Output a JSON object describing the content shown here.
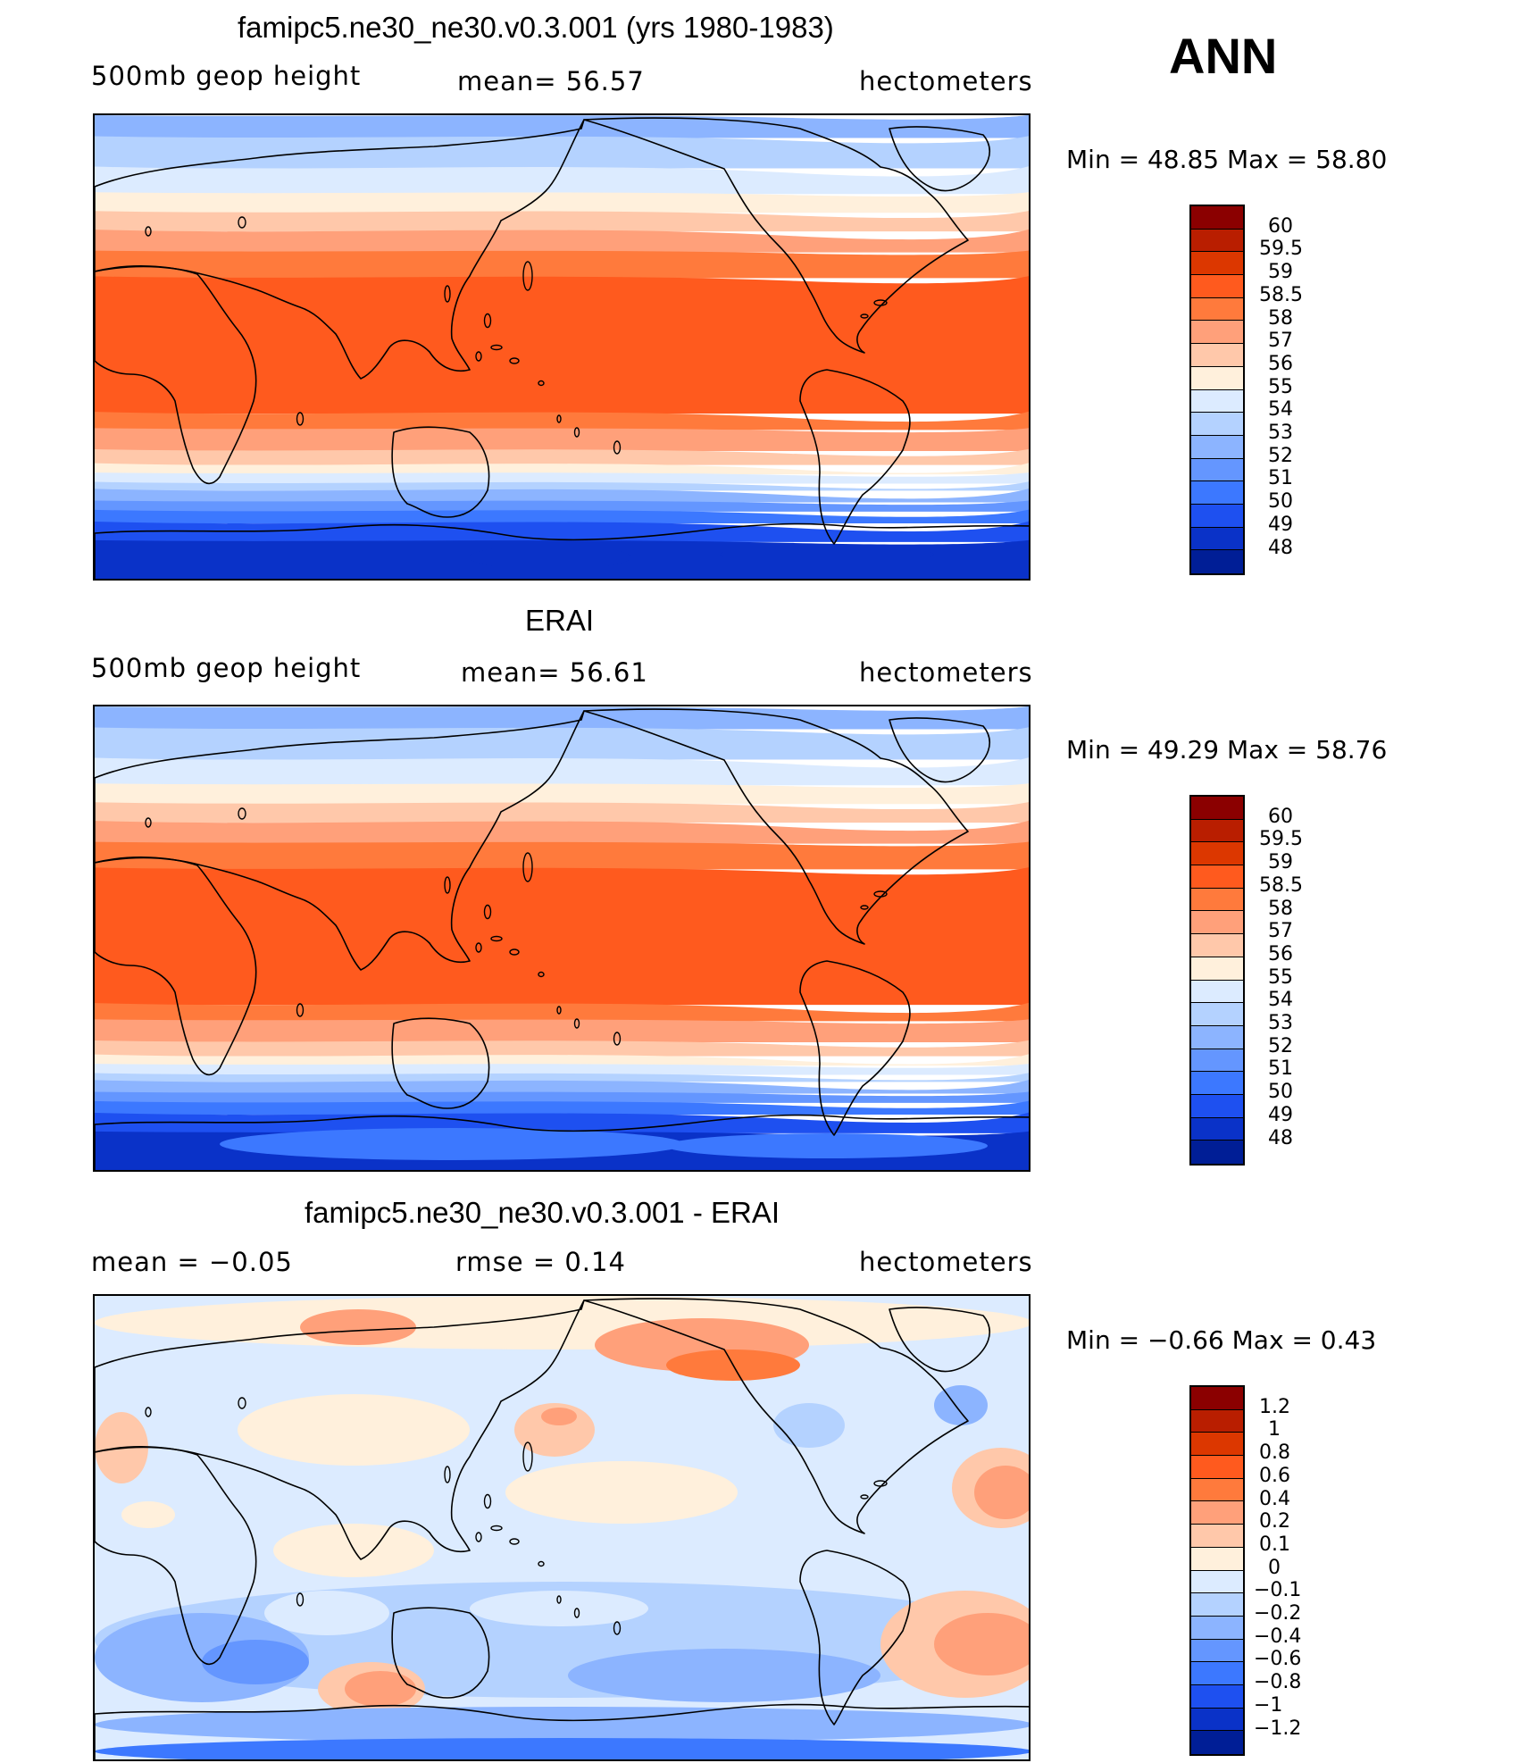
{
  "annual_label": "ANN",
  "panels": [
    {
      "title": "famipc5.ne30_ne30.v0.3.001 (yrs 1980-1983)",
      "left_label": "500mb  geop  height",
      "center_label": "mean=   56.57",
      "units": "hectometers",
      "minmax": "Min  =    48.85  Max  =    58.80",
      "type": "field"
    },
    {
      "title": "ERAI",
      "left_label": "500mb  geop  height",
      "center_label": "mean=   56.61",
      "units": "hectometers",
      "minmax": "Min  =    49.29  Max  =    58.76",
      "type": "field"
    },
    {
      "title": "famipc5.ne30_ne30.v0.3.001 - ERAI",
      "left_label": "mean  =    −0.05",
      "center_label": "rmse  =     0.14",
      "units": "hectometers",
      "minmax": "Min  =    −0.66  Max  =      0.43",
      "type": "diff"
    }
  ],
  "colorbars": {
    "field": {
      "colors": [
        "#8b0000",
        "#b91e00",
        "#dc3700",
        "#ff5a1e",
        "#ff7a3c",
        "#ffa07a",
        "#ffc8aa",
        "#fff0dc",
        "#dcebff",
        "#b4d2ff",
        "#8cb4ff",
        "#6496ff",
        "#3c78ff",
        "#1e50f0",
        "#0a32c8",
        "#001e96"
      ],
      "labels": [
        "60",
        "59.5",
        "59",
        "58.5",
        "58",
        "57",
        "56",
        "55",
        "54",
        "53",
        "52",
        "51",
        "50",
        "49",
        "48"
      ]
    },
    "diff": {
      "colors": [
        "#8b0000",
        "#b91e00",
        "#dc3700",
        "#ff5a1e",
        "#ff7a3c",
        "#ffa07a",
        "#ffc8aa",
        "#fff0dc",
        "#dcebff",
        "#b4d2ff",
        "#8cb4ff",
        "#6496ff",
        "#3c78ff",
        "#1e50f0",
        "#0a32c8",
        "#001e96"
      ],
      "labels": [
        "1.2",
        "1",
        "0.8",
        "0.6",
        "0.4",
        "0.2",
        "0.1",
        "0",
        "−0.1",
        "−0.2",
        "−0.4",
        "−0.6",
        "−0.8",
        "−1",
        "−1.2"
      ]
    }
  }
}
